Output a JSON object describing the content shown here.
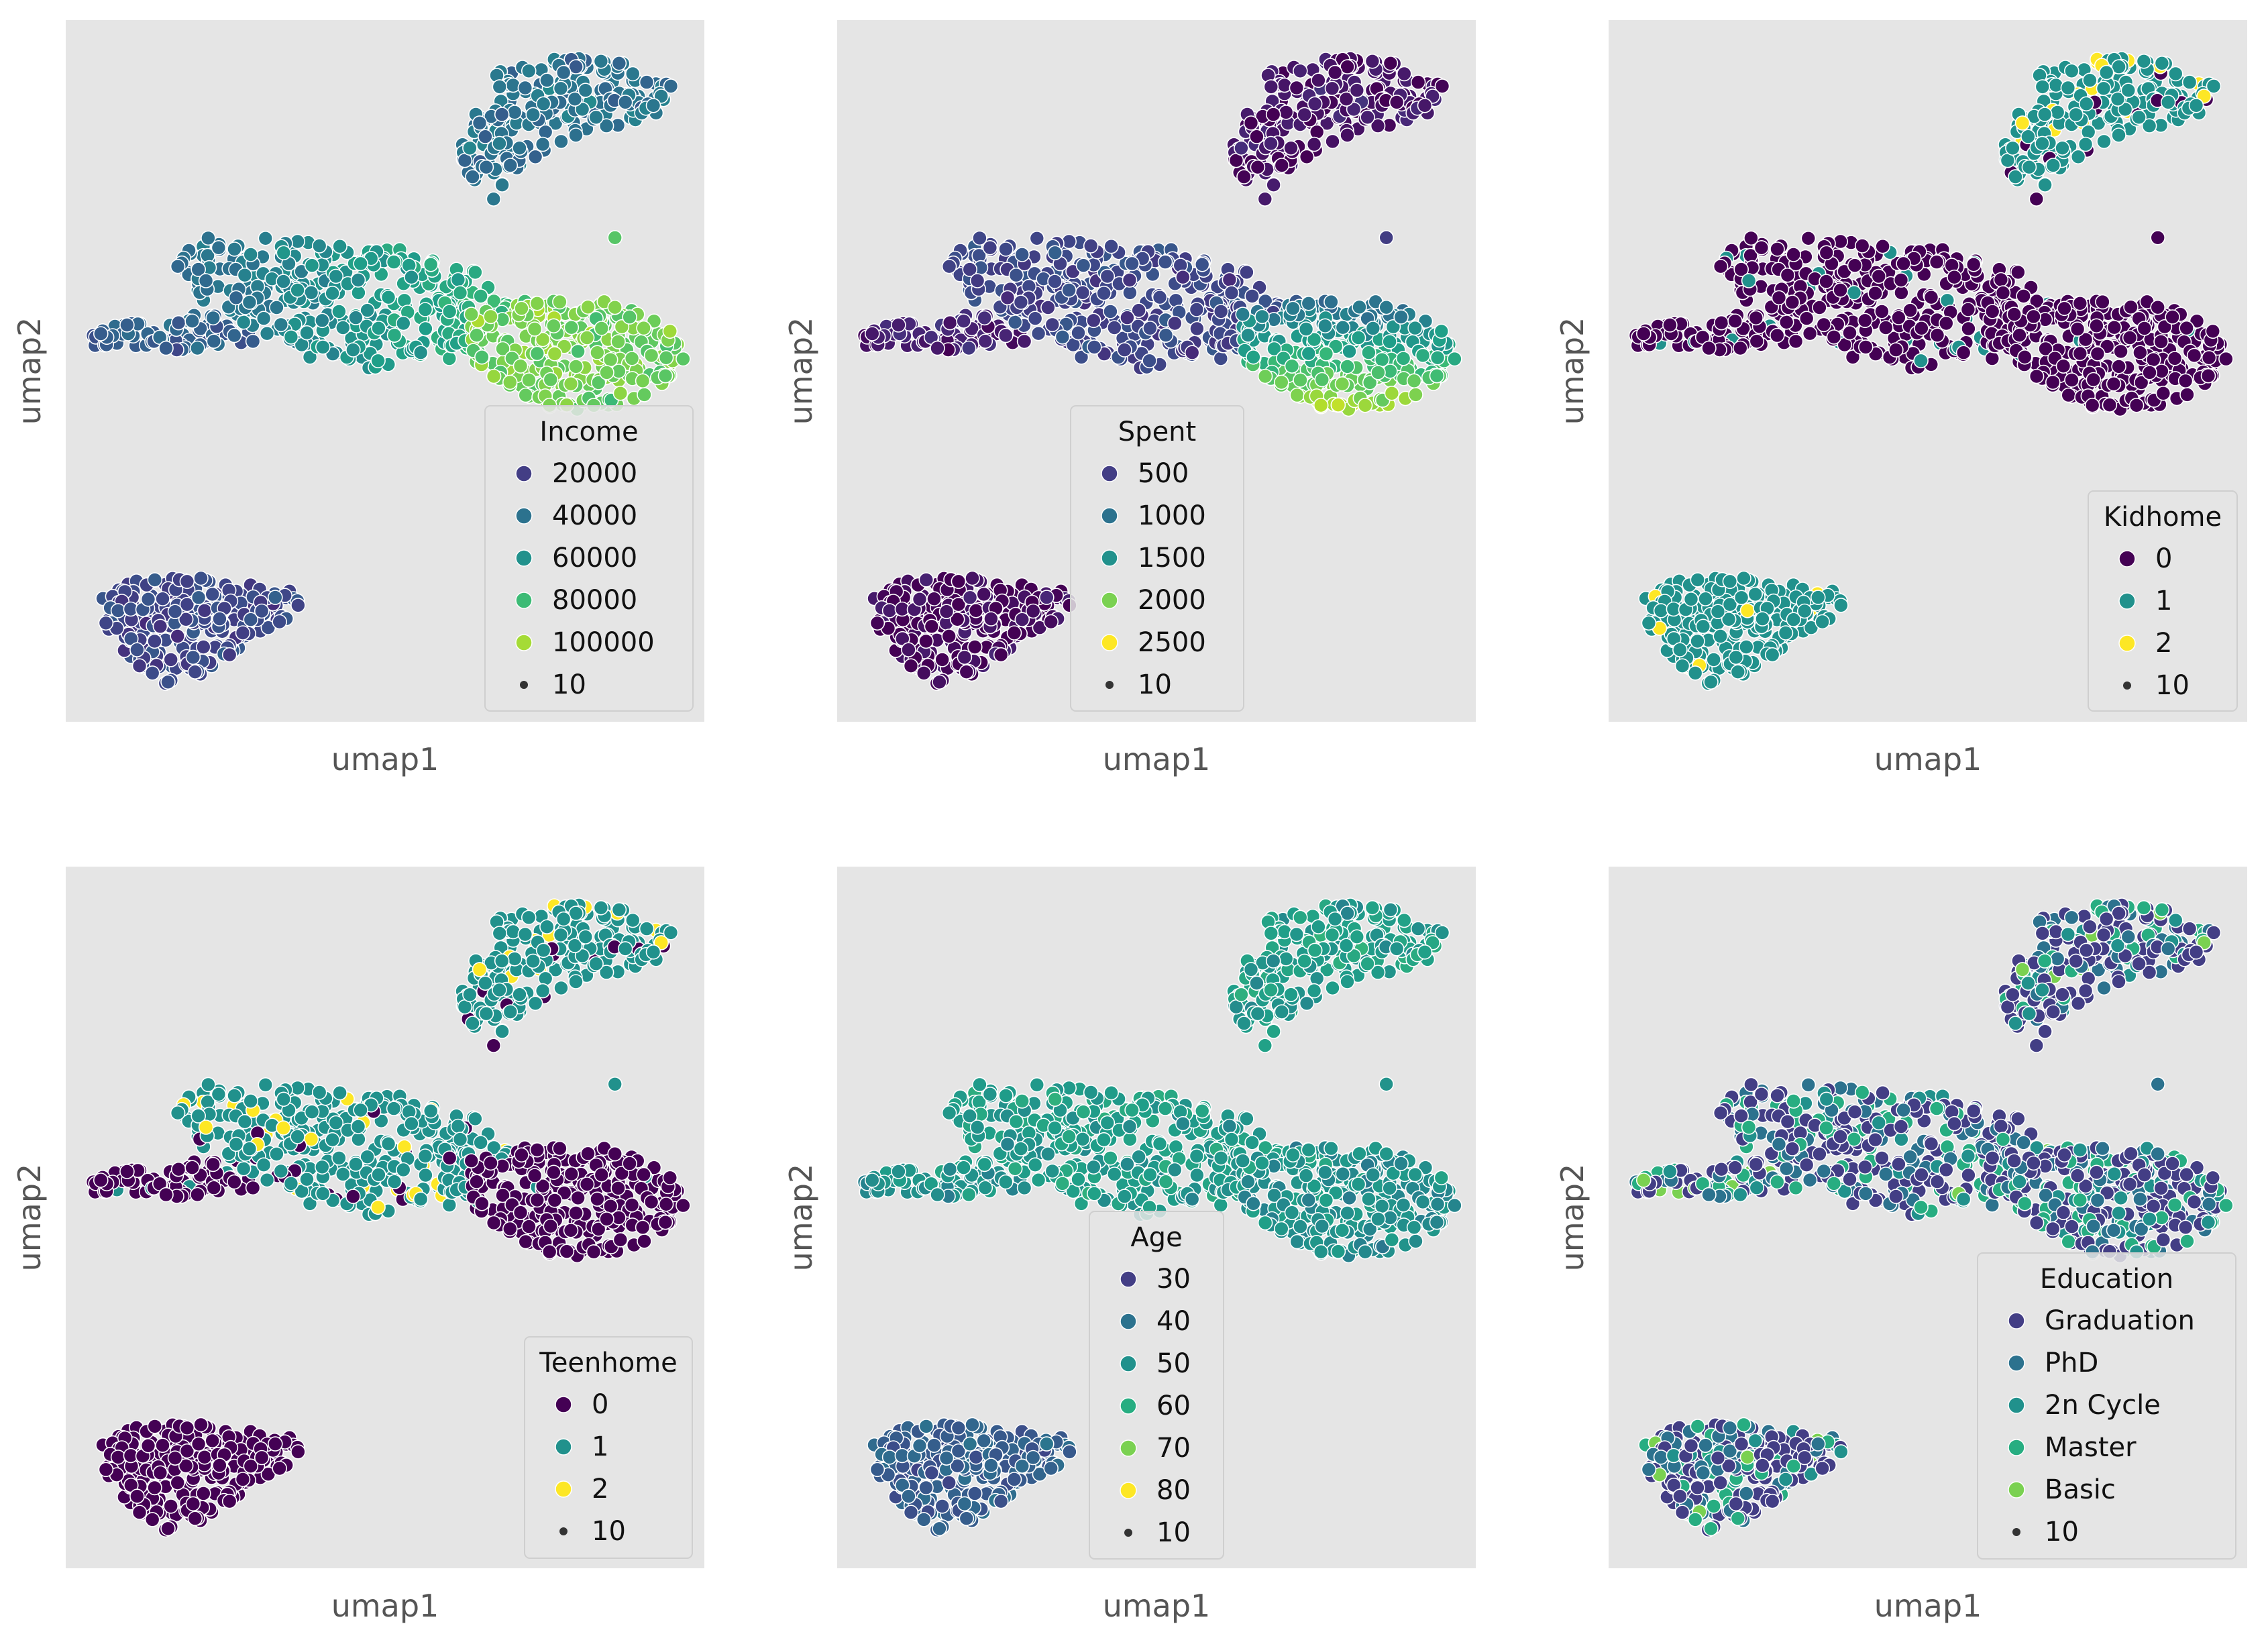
{
  "chart_data": [
    {
      "type": "scatter",
      "xlabel": "umap1",
      "ylabel": "umap2",
      "grid": false,
      "legend": {
        "title": "Income",
        "placement": "lower right",
        "entries": [
          {
            "label": "20000",
            "color": "#433e85"
          },
          {
            "label": "40000",
            "color": "#2c728e"
          },
          {
            "label": "60000",
            "color": "#21918c"
          },
          {
            "label": "80000",
            "color": "#3cbb75"
          },
          {
            "label": "100000",
            "color": "#a5db36"
          },
          {
            "label": "10",
            "color": "#333333",
            "size_marker": true
          }
        ]
      },
      "colormap": "viridis",
      "color_range": [
        0,
        110000
      ],
      "cluster_profile": {
        "top": 0.38,
        "middle_left": 0.3,
        "middle_center": 0.55,
        "middle_right": 0.78,
        "bottom": 0.22
      }
    },
    {
      "type": "scatter",
      "xlabel": "umap1",
      "ylabel": "umap2",
      "grid": false,
      "legend": {
        "title": "Spent",
        "placement": "lower center",
        "entries": [
          {
            "label": "500",
            "color": "#433e85"
          },
          {
            "label": "1000",
            "color": "#2c728e"
          },
          {
            "label": "1500",
            "color": "#21918c"
          },
          {
            "label": "2000",
            "color": "#7ad151"
          },
          {
            "label": "2500",
            "color": "#fde725"
          },
          {
            "label": "10",
            "color": "#333333",
            "size_marker": true
          }
        ]
      },
      "colormap": "viridis",
      "color_range": [
        0,
        2600
      ],
      "cluster_profile": {
        "top": 0.05,
        "middle_left": 0.08,
        "middle_center": 0.22,
        "middle_right": 0.55,
        "bottom": 0.02
      }
    },
    {
      "type": "scatter",
      "xlabel": "umap1",
      "ylabel": "umap2",
      "grid": false,
      "legend": {
        "title": "Kidhome",
        "placement": "lower right",
        "entries": [
          {
            "label": "0",
            "color": "#440154"
          },
          {
            "label": "1",
            "color": "#21918c"
          },
          {
            "label": "2",
            "color": "#fde725"
          },
          {
            "label": "10",
            "color": "#333333",
            "size_marker": true
          }
        ]
      },
      "colormap": "viridis",
      "color_range": [
        0,
        2
      ],
      "categorical_profile": {
        "top": [
          0.05,
          0.87,
          0.08
        ],
        "middle_left": [
          0.97,
          0.03,
          0.0
        ],
        "middle_center": [
          0.95,
          0.05,
          0.0
        ],
        "middle_right": [
          0.98,
          0.02,
          0.0
        ],
        "bottom": [
          0.0,
          0.95,
          0.05
        ]
      }
    },
    {
      "type": "scatter",
      "xlabel": "umap1",
      "ylabel": "umap2",
      "grid": false,
      "legend": {
        "title": "Teenhome",
        "placement": "lower right",
        "entries": [
          {
            "label": "0",
            "color": "#440154"
          },
          {
            "label": "1",
            "color": "#21918c"
          },
          {
            "label": "2",
            "color": "#fde725"
          },
          {
            "label": "10",
            "color": "#333333",
            "size_marker": true
          }
        ]
      },
      "colormap": "viridis",
      "color_range": [
        0,
        2
      ],
      "categorical_profile": {
        "top": [
          0.04,
          0.9,
          0.06
        ],
        "middle_left": [
          0.95,
          0.05,
          0.0
        ],
        "middle_center": [
          0.08,
          0.86,
          0.06
        ],
        "middle_right": [
          0.98,
          0.02,
          0.0
        ],
        "bottom": [
          1.0,
          0.0,
          0.0
        ]
      }
    },
    {
      "type": "scatter",
      "xlabel": "umap1",
      "ylabel": "umap2",
      "grid": false,
      "legend": {
        "title": "Age",
        "placement": "lower center",
        "entries": [
          {
            "label": "30",
            "color": "#433e85"
          },
          {
            "label": "40",
            "color": "#2c728e"
          },
          {
            "label": "50",
            "color": "#21918c"
          },
          {
            "label": "60",
            "color": "#27ad81"
          },
          {
            "label": "70",
            "color": "#7ad151"
          },
          {
            "label": "80",
            "color": "#fde725"
          },
          {
            "label": "10",
            "color": "#333333",
            "size_marker": true
          }
        ]
      },
      "colormap": "viridis",
      "color_range": [
        20,
        85
      ],
      "cluster_profile": {
        "top": 0.55,
        "middle_left": 0.5,
        "middle_center": 0.55,
        "middle_right": 0.5,
        "bottom": 0.3
      }
    },
    {
      "type": "scatter",
      "xlabel": "umap1",
      "ylabel": "umap2",
      "grid": false,
      "legend": {
        "title": "Education",
        "placement": "lower right",
        "entries": [
          {
            "label": "Graduation",
            "color": "#433e85"
          },
          {
            "label": "PhD",
            "color": "#2c728e"
          },
          {
            "label": "2n Cycle",
            "color": "#21918c"
          },
          {
            "label": "Master",
            "color": "#27ad81"
          },
          {
            "label": "Basic",
            "color": "#7ad151"
          },
          {
            "label": "10",
            "color": "#333333",
            "size_marker": true
          }
        ]
      },
      "colormap": "viridis",
      "categorical_profile": {
        "top": [
          0.5,
          0.22,
          0.1,
          0.15,
          0.03
        ],
        "middle_left": [
          0.45,
          0.2,
          0.12,
          0.15,
          0.08
        ],
        "middle_center": [
          0.5,
          0.22,
          0.1,
          0.16,
          0.02
        ],
        "middle_right": [
          0.5,
          0.24,
          0.1,
          0.16,
          0.0
        ],
        "bottom": [
          0.48,
          0.22,
          0.1,
          0.15,
          0.05
        ]
      }
    }
  ]
}
